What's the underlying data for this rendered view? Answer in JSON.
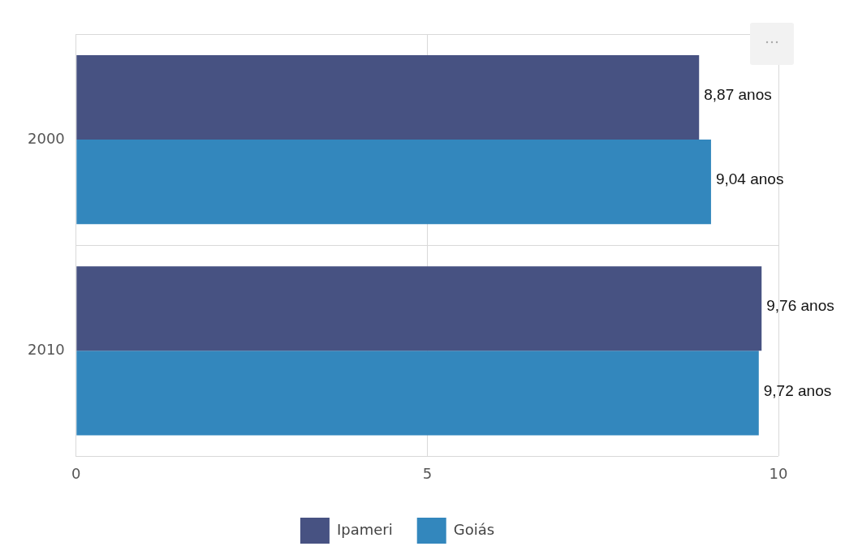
{
  "chart_data": {
    "type": "bar",
    "orientation": "horizontal",
    "categories": [
      "2000",
      "2010"
    ],
    "series": [
      {
        "name": "Ipameri",
        "color": "#475282",
        "values": [
          8.87,
          9.76
        ],
        "value_labels": [
          "8,87 anos",
          "9,76 anos"
        ]
      },
      {
        "name": "Goiás",
        "color": "#3387bd",
        "values": [
          9.04,
          9.72
        ],
        "value_labels": [
          "9,04 anos",
          "9,72 anos"
        ]
      }
    ],
    "xlim": [
      0,
      10
    ],
    "xticks": [
      0,
      5,
      10
    ],
    "grid": true,
    "legend": "bottom"
  }
}
